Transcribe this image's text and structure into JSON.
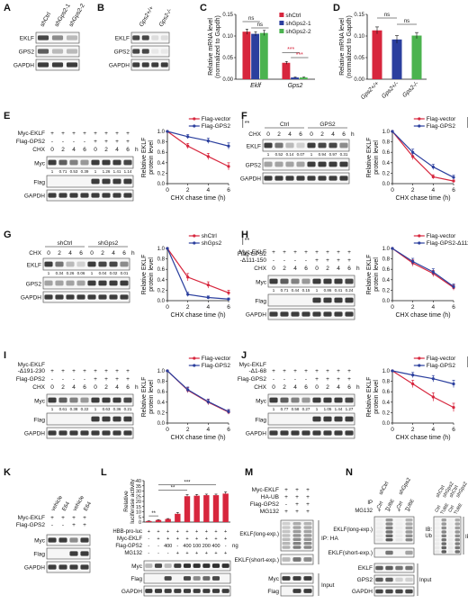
{
  "panels": {
    "A": {
      "letter": "A",
      "lanes": [
        "shCtrl",
        "shGps2-1",
        "shGps2-2"
      ],
      "rows": [
        "EKLF",
        "GPS2",
        "GAPDH"
      ]
    },
    "B": {
      "letter": "B",
      "lanes": [
        "Gps2+/+",
        "Gps2-/-"
      ],
      "rows": [
        "EKLF",
        "GPS2",
        "GAPDH"
      ]
    },
    "E": {
      "letter": "E",
      "conds": [
        "Myc-EKLF",
        "Flag-GPS2",
        "CHX"
      ],
      "cond_values": [
        [
          "+",
          "+",
          "+",
          "+",
          "+",
          "+",
          "+",
          "+"
        ],
        [
          "-",
          "-",
          "-",
          "-",
          "+",
          "+",
          "+",
          "+"
        ],
        [
          "0",
          "2",
          "4",
          "6",
          "0",
          "2",
          "4",
          "6"
        ]
      ],
      "unit": "h",
      "rows": [
        "Myc",
        "Flag",
        "GAPDH"
      ],
      "quant": [
        "1",
        "0.71",
        "0.53",
        "0.39",
        "1",
        "1.26",
        "1.41",
        "1.14"
      ]
    },
    "F": {
      "letter": "F",
      "groups": [
        "Ctrl",
        "GPS2"
      ],
      "cond": "CHX",
      "times": [
        "0",
        "2",
        "4",
        "6",
        "0",
        "2",
        "4",
        "6"
      ],
      "unit": "h",
      "rows": [
        "EKLF",
        "GPS2",
        "GAPDH"
      ],
      "quant": [
        "1",
        "0.52",
        "0.14",
        "0.07",
        "1",
        "0.94",
        "0.97",
        "0.31"
      ]
    },
    "G": {
      "letter": "G",
      "groups": [
        "shCtrl",
        "shGps2"
      ],
      "cond": "CHX",
      "times": [
        "0",
        "2",
        "4",
        "6",
        "0",
        "2",
        "4",
        "6"
      ],
      "unit": "h",
      "rows": [
        "EKLF",
        "GPS2",
        "GAPDH"
      ],
      "quant": [
        "1",
        "0.34",
        "0.26",
        "0.06",
        "1",
        "0.04",
        "0.02",
        "0.01"
      ]
    },
    "H": {
      "letter": "H",
      "conds": [
        "Myc-EKLF",
        "Flag-GPS2\n-Δ111-150",
        "CHX"
      ],
      "cond_values": [
        [
          "+",
          "+",
          "+",
          "+",
          "+",
          "+",
          "+",
          "+"
        ],
        [
          "-",
          "-",
          "-",
          "-",
          "+",
          "+",
          "+",
          "+"
        ],
        [
          "0",
          "2",
          "4",
          "6",
          "0",
          "2",
          "4",
          "6"
        ]
      ],
      "unit": "h",
      "rows": [
        "Myc",
        "Flag",
        "GAPDH"
      ],
      "quant": [
        "1",
        "0.71",
        "0.44",
        "0.15",
        "1",
        "0.86",
        "0.41",
        "0.24"
      ]
    },
    "I": {
      "letter": "I",
      "conds": [
        "Myc-EKLF\n-Δ191-230",
        "Flag-GPS2",
        "CHX"
      ],
      "cond_values": [
        [
          "+",
          "+",
          "+",
          "+",
          "+",
          "+",
          "+",
          "+"
        ],
        [
          "-",
          "-",
          "-",
          "-",
          "+",
          "+",
          "+",
          "+"
        ],
        [
          "0",
          "2",
          "4",
          "6",
          "0",
          "2",
          "4",
          "6"
        ]
      ],
      "unit": "h",
      "rows": [
        "Myc",
        "Flag",
        "GAPDH"
      ],
      "quant": [
        "1",
        "0.61",
        "0.38",
        "0.22",
        "1",
        "0.63",
        "0.36",
        "0.21"
      ]
    },
    "J": {
      "letter": "J",
      "conds": [
        "Myc-EKLF\n-Δ1-68",
        "Flag-GPS2",
        "CHX"
      ],
      "cond_values": [
        [
          "+",
          "+",
          "+",
          "+",
          "+",
          "+",
          "+",
          "+"
        ],
        [
          "-",
          "-",
          "-",
          "-",
          "+",
          "+",
          "+",
          "+"
        ],
        [
          "0",
          "2",
          "4",
          "6",
          "0",
          "2",
          "4",
          "6"
        ]
      ],
      "unit": "h",
      "rows": [
        "Myc",
        "Flag",
        "GAPDH"
      ],
      "quant": [
        "1",
        "0.77",
        "0.58",
        "0.27",
        "1",
        "1.05",
        "1.44",
        "1.27"
      ]
    },
    "K": {
      "letter": "K",
      "lanes": [
        "vehicle",
        "E64",
        "vehicle",
        "E64"
      ],
      "conds": [
        "Myc-EKLF",
        "Flag-GPS2"
      ],
      "cond_values": [
        [
          "+",
          "+",
          "+",
          "+"
        ],
        [
          "-",
          "-",
          "+",
          "+"
        ]
      ],
      "rows": [
        "Myc",
        "Flag",
        "GAPDH"
      ]
    },
    "L": {
      "letter": "L",
      "conds": [
        "HBB-pro-luc",
        "Myc-EKLF",
        "Flag-GPS2",
        "MG132"
      ],
      "cond_values": [
        [
          "+",
          "+",
          "+",
          "+",
          "+",
          "+",
          "+",
          "+",
          "+"
        ],
        [
          "-",
          "+",
          "+",
          "+",
          "+",
          "+",
          "+",
          "+",
          "+"
        ],
        [
          "-",
          "-",
          "400",
          "-",
          "400",
          "100",
          "200",
          "400",
          "-"
        ],
        [
          "-",
          "-",
          "-",
          "+",
          "+",
          "+",
          "+",
          "+",
          "+"
        ]
      ],
      "unit": "ng",
      "rows": [
        "Myc",
        "Flag",
        "GAPDH"
      ]
    },
    "M": {
      "letter": "M",
      "conds": [
        "Myc-EKLF",
        "HA-UB",
        "Flag-GPS2",
        "MG132"
      ],
      "cond_values": [
        [
          "+",
          "+",
          "+"
        ],
        [
          "+",
          "+",
          "+"
        ],
        [
          "-",
          "+",
          "+"
        ],
        [
          "+",
          "+",
          "+"
        ]
      ],
      "rows": [
        "EKLF(long-exp.)",
        "EKLF(short-exp.)",
        "Myc",
        "Flag"
      ],
      "side_ip": "IP: HA",
      "side_input": "Input"
    },
    "N": {
      "letter": "N",
      "lanes": [
        "shCtrl",
        "shGps2"
      ],
      "ip_label": "IP",
      "ip_values": [
        "Ctrl",
        "TUBE",
        "Ctrl",
        "TUBE"
      ],
      "mg_label": "MG132",
      "mg_values": [
        "+",
        "+",
        "+",
        "+"
      ],
      "rows": [
        "EKLF(long-exp.)",
        "EKLF(short-exp.)",
        "EKLF",
        "GPS2",
        "GAPDH"
      ],
      "side_input": "Input",
      "ib_label": "IB:\nUb",
      "ib_lanes": [
        "shCtrl",
        "shGps2",
        "shCtrl",
        "shGps2"
      ],
      "ib_ip_values": [
        "Ctrl",
        "TUBE",
        "Ctrl",
        "TUBE"
      ],
      "side_ip": "IP"
    }
  },
  "chart_data": [
    {
      "panel": "C",
      "type": "bar",
      "ylabel": "Relative mRNA level\n(normalized to Gapdh)",
      "ylim": [
        0,
        0.15
      ],
      "yticks": [
        "0.00",
        "0.05",
        "0.10",
        "0.15"
      ],
      "categories": [
        "Eklf",
        "Gps2"
      ],
      "series": [
        {
          "name": "shCtrl",
          "color": "#d7263d",
          "values": [
            0.11,
            0.038
          ],
          "errors": [
            0.006,
            0.003
          ]
        },
        {
          "name": "shGps2-1",
          "color": "#2b3f9e",
          "values": [
            0.105,
            0.004
          ],
          "errors": [
            0.005,
            0.001
          ]
        },
        {
          "name": "shGps2-2",
          "color": "#4bb34f",
          "values": [
            0.107,
            0.004
          ],
          "errors": [
            0.006,
            0.001
          ]
        }
      ],
      "annotations": [
        "ns",
        "ns",
        "***",
        "***"
      ],
      "legend": "top-right"
    },
    {
      "panel": "D",
      "type": "bar",
      "ylabel": "Relative mRNA level\n(normalized to Gapdh)",
      "ylim": [
        0,
        0.15
      ],
      "yticks": [
        "0.00",
        "0.05",
        "0.10",
        "0.15"
      ],
      "categories": [
        "Gps2+/+",
        "Gps2+/-",
        "Gps2-/-"
      ],
      "colors": [
        "#d7263d",
        "#2b3f9e",
        "#4bb34f"
      ],
      "values": [
        0.113,
        0.092,
        0.101
      ],
      "errors": [
        0.008,
        0.009,
        0.007
      ],
      "annotations": [
        "ns",
        "ns"
      ]
    },
    {
      "panel": "E",
      "type": "line",
      "xlabel": "CHX chase time (h)",
      "ylabel": "Relative EKLF\nprotein level",
      "ylim": [
        0,
        1.0
      ],
      "xlim": [
        0,
        6
      ],
      "x": [
        0,
        2,
        4,
        6
      ],
      "xticks": [
        "0",
        "2",
        "4",
        "6"
      ],
      "yticks": [
        "0.0",
        "0.2",
        "0.4",
        "0.6",
        "0.8",
        "1.0"
      ],
      "series": [
        {
          "name": "Flag-vector",
          "color": "#d7263d",
          "values": [
            1.0,
            0.72,
            0.52,
            0.33
          ],
          "errors": [
            0,
            0.05,
            0.06,
            0.07
          ]
        },
        {
          "name": "Flag-GPS2",
          "color": "#2b3f9e",
          "values": [
            1.0,
            0.9,
            0.82,
            0.72
          ],
          "errors": [
            0,
            0.04,
            0.05,
            0.06
          ]
        }
      ],
      "sig": "**",
      "legend": "top-right"
    },
    {
      "panel": "F",
      "type": "line",
      "xlabel": "CHX chase time (h)",
      "ylabel": "Relative EKLF\nprotein level",
      "ylim": [
        0,
        1.0
      ],
      "xlim": [
        0,
        6
      ],
      "x": [
        0,
        2,
        4,
        6
      ],
      "xticks": [
        "0",
        "2",
        "4",
        "6"
      ],
      "yticks": [
        "0.0",
        "0.2",
        "0.4",
        "0.6",
        "0.8",
        "1.0"
      ],
      "series": [
        {
          "name": "Flag-vector",
          "color": "#d7263d",
          "values": [
            1.0,
            0.52,
            0.13,
            0.05
          ],
          "errors": [
            0,
            0.06,
            0.04,
            0.02
          ]
        },
        {
          "name": "Flag-GPS2",
          "color": "#2b3f9e",
          "values": [
            1.0,
            0.6,
            0.32,
            0.12
          ],
          "errors": [
            0,
            0.06,
            0.05,
            0.04
          ]
        }
      ],
      "sig": "**",
      "legend": "top-right"
    },
    {
      "panel": "G",
      "type": "line",
      "xlabel": "CHX chase time (h)",
      "ylabel": "Relative EKLF\nprotein level",
      "ylim": [
        0,
        1.0
      ],
      "xlim": [
        0,
        6
      ],
      "x": [
        0,
        2,
        4,
        6
      ],
      "xticks": [
        "0",
        "2",
        "4",
        "6"
      ],
      "yticks": [
        "0.0",
        "0.2",
        "0.4",
        "0.6",
        "0.8",
        "1.0"
      ],
      "series": [
        {
          "name": "shCtrl",
          "color": "#d7263d",
          "values": [
            1.0,
            0.45,
            0.3,
            0.15
          ],
          "errors": [
            0,
            0.07,
            0.06,
            0.05
          ]
        },
        {
          "name": "shGps2",
          "color": "#2b3f9e",
          "values": [
            1.0,
            0.12,
            0.06,
            0.03
          ],
          "errors": [
            0,
            0.04,
            0.03,
            0.02
          ]
        }
      ],
      "sig": "**",
      "legend": "top-right"
    },
    {
      "panel": "H",
      "type": "line",
      "xlabel": "CHX chase time (h)",
      "ylabel": "Relative EKLF\nprotein level",
      "ylim": [
        0,
        1.0
      ],
      "xlim": [
        0,
        6
      ],
      "x": [
        0,
        2,
        4,
        6
      ],
      "xticks": [
        "0",
        "2",
        "4",
        "6"
      ],
      "yticks": [
        "0.0",
        "0.2",
        "0.4",
        "0.6",
        "0.8",
        "1.0"
      ],
      "series": [
        {
          "name": "Flag-vector",
          "color": "#d7263d",
          "values": [
            1.0,
            0.72,
            0.52,
            0.25
          ],
          "errors": [
            0,
            0.06,
            0.06,
            0.05
          ]
        },
        {
          "name": "Flag-GPS2-Δ111-150",
          "color": "#2b3f9e",
          "values": [
            1.0,
            0.75,
            0.55,
            0.27
          ],
          "errors": [
            0,
            0.06,
            0.06,
            0.05
          ]
        }
      ],
      "legend": "top-right"
    },
    {
      "panel": "I",
      "type": "line",
      "xlabel": "CHX chase time (h)",
      "ylabel": "Relative EKLF\nprotein level",
      "ylim": [
        0,
        1.0
      ],
      "xlim": [
        0,
        6
      ],
      "x": [
        0,
        2,
        4,
        6
      ],
      "xticks": [
        "0",
        "2",
        "4",
        "6"
      ],
      "yticks": [
        "0.0",
        "0.2",
        "0.4",
        "0.6",
        "0.8",
        "1.0"
      ],
      "series": [
        {
          "name": "Flag-vector",
          "color": "#d7263d",
          "values": [
            1.0,
            0.63,
            0.4,
            0.21
          ],
          "errors": [
            0,
            0.05,
            0.05,
            0.04
          ]
        },
        {
          "name": "Flag-GPS2",
          "color": "#2b3f9e",
          "values": [
            1.0,
            0.64,
            0.41,
            0.22
          ],
          "errors": [
            0,
            0.05,
            0.05,
            0.04
          ]
        }
      ],
      "legend": "top-right"
    },
    {
      "panel": "J",
      "type": "line",
      "xlabel": "CHX chase time (h)",
      "ylabel": "Relative EKLF\nprotein level",
      "ylim": [
        0,
        1.0
      ],
      "xlim": [
        0,
        6
      ],
      "x": [
        0,
        2,
        4,
        6
      ],
      "xticks": [
        "0",
        "2",
        "4",
        "6"
      ],
      "yticks": [
        "0.0",
        "0.2",
        "0.4",
        "0.6",
        "0.8",
        "1.0"
      ],
      "series": [
        {
          "name": "Flag-vector",
          "color": "#d7263d",
          "values": [
            1.0,
            0.75,
            0.5,
            0.3
          ],
          "errors": [
            0,
            0.07,
            0.08,
            0.08
          ]
        },
        {
          "name": "Flag-GPS2",
          "color": "#2b3f9e",
          "values": [
            1.0,
            0.92,
            0.85,
            0.75
          ],
          "errors": [
            0,
            0.05,
            0.06,
            0.07
          ]
        }
      ],
      "sig": "*",
      "legend": "top-right"
    },
    {
      "panel": "L",
      "type": "bar",
      "ylabel": "Relative\nluciferase activity",
      "ylim": [
        0,
        40
      ],
      "yticks": [
        "0",
        "5",
        "10",
        "15",
        "20",
        "25",
        "30",
        "35",
        "40"
      ],
      "categories": [
        "1",
        "2",
        "3",
        "4",
        "5",
        "6",
        "7",
        "8",
        "9"
      ],
      "color": "#d7263d",
      "values": [
        1,
        2,
        3,
        8,
        25,
        25.5,
        26,
        26,
        27.5
      ],
      "errors": [
        0.2,
        0.3,
        0.4,
        1.2,
        1.5,
        1.2,
        1.0,
        1.0,
        1.6
      ],
      "annotations": [
        "**",
        "**",
        "***"
      ]
    }
  ]
}
